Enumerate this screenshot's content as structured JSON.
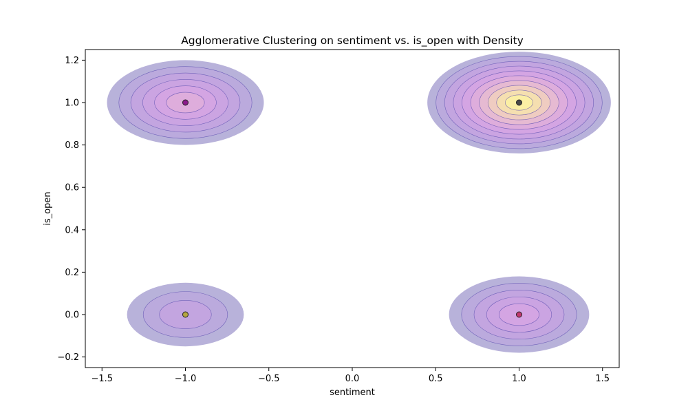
{
  "chart_data": {
    "type": "scatter",
    "title": "Agglomerative Clustering on sentiment vs. is_open with Density",
    "xlabel": "sentiment",
    "ylabel": "is_open",
    "xlim": [
      -1.6,
      1.6
    ],
    "ylim": [
      -0.25,
      1.25
    ],
    "xticks": [
      -1.5,
      -1.0,
      -0.5,
      0.0,
      0.5,
      1.0,
      1.5
    ],
    "xtick_labels": [
      "−1.5",
      "−1.0",
      "−0.5",
      "0.0",
      "0.5",
      "1.0",
      "1.5"
    ],
    "yticks": [
      -0.2,
      0.0,
      0.2,
      0.4,
      0.6,
      0.8,
      1.0,
      1.2
    ],
    "ytick_labels": [
      "−0.2",
      "0.0",
      "0.2",
      "0.4",
      "0.6",
      "0.8",
      "1.0",
      "1.2"
    ],
    "grid": false,
    "points": [
      {
        "x": -1.0,
        "y": 1.0,
        "color": "#8b1a8b"
      },
      {
        "x": 1.0,
        "y": 1.0,
        "color": "#4a4a4a"
      },
      {
        "x": -1.0,
        "y": 0.0,
        "color": "#b5a640"
      },
      {
        "x": 1.0,
        "y": 0.0,
        "color": "#c2386e"
      }
    ],
    "density_peaks": [
      {
        "x": -1.0,
        "y": 1.0,
        "rx": 0.47,
        "ry": 0.2,
        "levels": 6
      },
      {
        "x": 1.0,
        "y": 1.0,
        "rx": 0.55,
        "ry": 0.24,
        "levels": 10
      },
      {
        "x": -1.0,
        "y": 0.0,
        "rx": 0.35,
        "ry": 0.15,
        "levels": 3
      },
      {
        "x": 1.0,
        "y": 0.0,
        "rx": 0.42,
        "ry": 0.18,
        "levels": 5
      }
    ],
    "density_colormap": [
      "#b8b2da",
      "#bba8dd",
      "#c4a4e0",
      "#cda3e2",
      "#d6a6e3",
      "#dfaedb",
      "#e8bcd0",
      "#f0cfbe",
      "#f6e2ad",
      "#fbf2a2"
    ],
    "density_line_color": "#5d4fb0"
  }
}
